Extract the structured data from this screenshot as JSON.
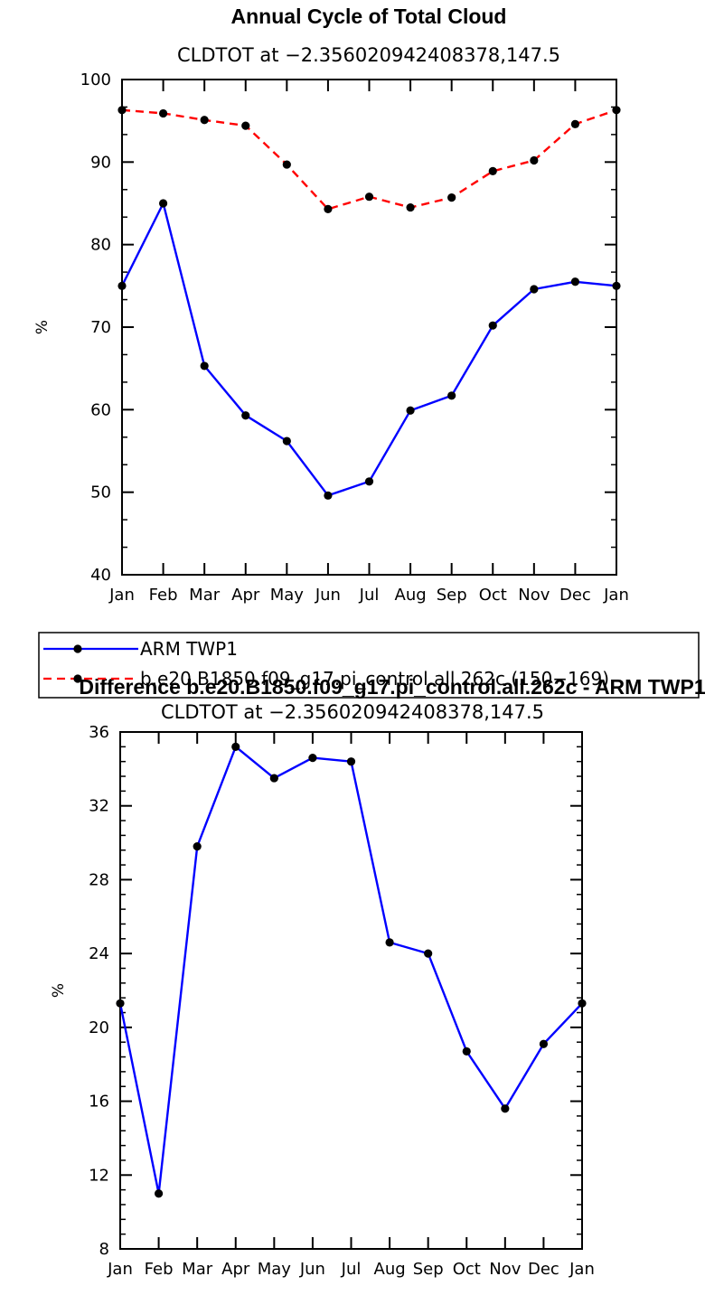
{
  "chart_data": [
    {
      "type": "line",
      "title": "Annual Cycle of Total Cloud",
      "subtitle": "CLDTOT at −2.356020942408378,147.5",
      "xlabel": "",
      "ylabel": "%",
      "categories": [
        "Jan",
        "Feb",
        "Mar",
        "Apr",
        "May",
        "Jun",
        "Jul",
        "Aug",
        "Sep",
        "Oct",
        "Nov",
        "Dec",
        "Jan"
      ],
      "ylim": [
        40,
        100
      ],
      "yticks": [
        40,
        50,
        60,
        70,
        80,
        90,
        100
      ],
      "yminor": 2,
      "grid": false,
      "legend": "bottom-outside",
      "series": [
        {
          "name": "ARM TWP1",
          "color": "#0000ff",
          "dash": "solid",
          "values": [
            75.0,
            85.0,
            65.3,
            59.3,
            56.2,
            49.6,
            51.3,
            59.9,
            61.7,
            70.2,
            74.6,
            75.5,
            75.0
          ]
        },
        {
          "name": "b.e20.B1850.f09_g17.pi_control.all.262c (150−169)",
          "color": "#ff0000",
          "dash": "dashed",
          "values": [
            96.3,
            95.9,
            95.1,
            94.4,
            89.7,
            84.3,
            85.8,
            84.5,
            85.7,
            88.9,
            90.2,
            94.6,
            96.3
          ]
        }
      ]
    },
    {
      "type": "line",
      "title": "Difference b.e20.B1850.f09_g17.pi_control.all.262c - ARM TWP1",
      "subtitle": "CLDTOT at −2.356020942408378,147.5",
      "xlabel": "",
      "ylabel": "%",
      "categories": [
        "Jan",
        "Feb",
        "Mar",
        "Apr",
        "May",
        "Jun",
        "Jul",
        "Aug",
        "Sep",
        "Oct",
        "Nov",
        "Dec",
        "Jan"
      ],
      "ylim": [
        8,
        36
      ],
      "yticks": [
        8,
        12,
        16,
        20,
        24,
        28,
        32,
        36
      ],
      "yminor": 4,
      "grid": false,
      "legend": "none",
      "series": [
        {
          "name": "Difference",
          "color": "#0000ff",
          "dash": "solid",
          "values": [
            21.3,
            11.0,
            29.8,
            35.2,
            33.5,
            34.6,
            34.4,
            24.6,
            24.0,
            18.7,
            15.6,
            19.1,
            21.3
          ]
        }
      ]
    }
  ]
}
